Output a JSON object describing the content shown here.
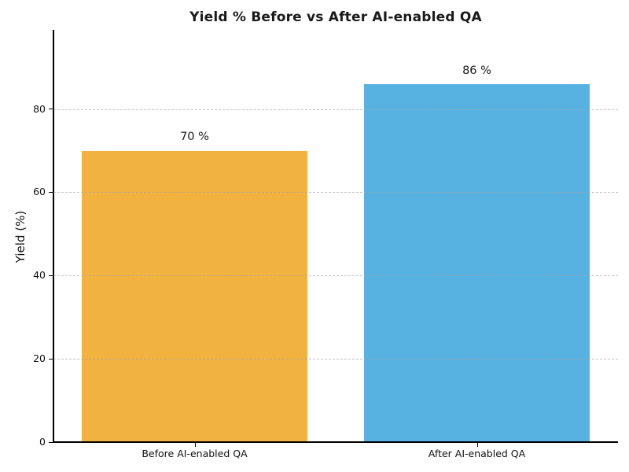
{
  "title": "Yield % Before vs After AI-enabled QA",
  "chart_data": {
    "type": "bar",
    "title": "Yield % Before vs After AI-enabled QA",
    "categories": [
      "Before AI-enabled QA",
      "After AI-enabled QA"
    ],
    "values": [
      70,
      86
    ],
    "bar_labels": [
      "70 %",
      "86 %"
    ],
    "bar_colors": [
      "#F2B23F",
      "#57B2E2"
    ],
    "xlabel": "",
    "ylabel": "Yield (%)",
    "ylim": [
      0,
      99
    ],
    "yticks": [
      0,
      20,
      40,
      60,
      80
    ],
    "grid": "horizontal dashed lines at y ticks, drawn over bars",
    "grid_color": "#aaaaaa",
    "axis_color": "#000000",
    "text_color": "#1a1a1a",
    "background_color": "#ffffff",
    "legend": "none",
    "bar_width_fraction": 0.8
  }
}
